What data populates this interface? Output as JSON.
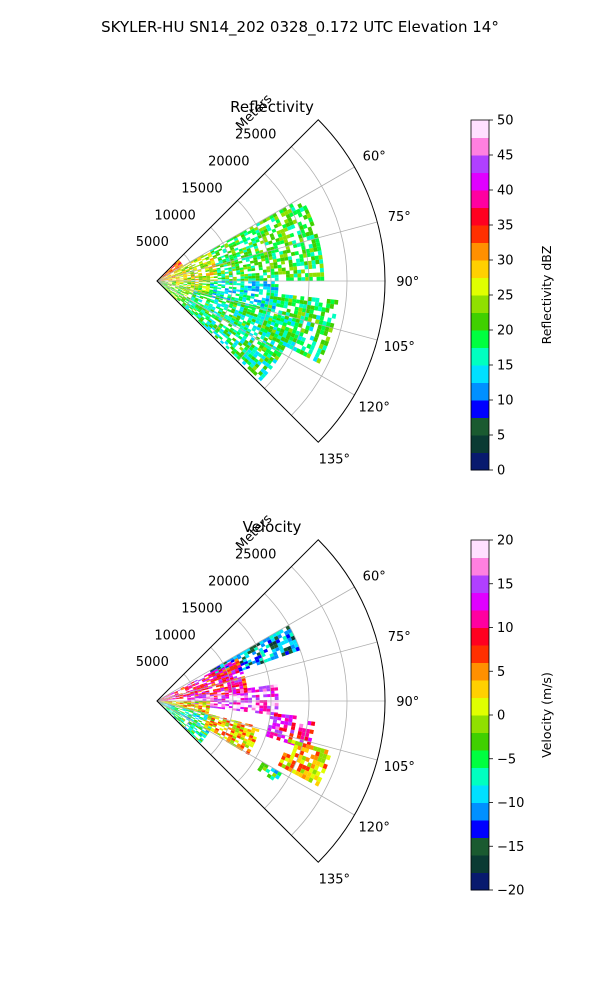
{
  "figure": {
    "suptitle": "SKYLER-HU  SN14_202  0328_0.172 UTC Elevation 14°"
  },
  "chart_data": [
    {
      "type": "polar-sector-heatmap",
      "title": "Reflectivity",
      "radial_label": "Meters",
      "radial_ticks": [
        5000,
        10000,
        15000,
        20000,
        25000
      ],
      "radial_tick_labels": [
        "5000",
        "10000",
        "15000",
        "20000",
        "25000"
      ],
      "rlim": [
        0,
        30000
      ],
      "angular_ticks_deg": [
        60,
        75,
        90,
        105,
        120,
        135
      ],
      "angular_tick_labels": [
        "60°",
        "75°",
        "90°",
        "105°",
        "120°",
        "135°"
      ],
      "theta_range_deg": [
        45,
        135
      ],
      "grid": true,
      "colorbar": {
        "label": "Reflectivity dBZ",
        "ticks": [
          0,
          5,
          10,
          15,
          20,
          25,
          30,
          35,
          40,
          45,
          50
        ],
        "tick_labels": [
          "0",
          "5",
          "10",
          "15",
          "20",
          "25",
          "30",
          "35",
          "40",
          "45",
          "50"
        ],
        "range": [
          0,
          50
        ],
        "colormap": [
          "#081a6e",
          "#0a3a33",
          "#1a5a30",
          "#0000ff",
          "#0090ff",
          "#00e0ff",
          "#00ffc0",
          "#00ff40",
          "#40d000",
          "#90e000",
          "#e0ff00",
          "#ffd000",
          "#ff9000",
          "#ff3000",
          "#ff0020",
          "#ff00a0",
          "#e000ff",
          "#b040ff",
          "#ff80e0",
          "#ffe0ff"
        ]
      },
      "echo_regions": [
        {
          "az": [
            46,
            60
          ],
          "r": [
            0,
            4000
          ],
          "value": 34
        },
        {
          "az": [
            50,
            90
          ],
          "r": [
            0,
            2500
          ],
          "value": 30
        },
        {
          "az": [
            60,
            90
          ],
          "r": [
            2500,
            8000
          ],
          "value": 26
        },
        {
          "az": [
            60,
            90
          ],
          "r": [
            8000,
            22000
          ],
          "value": 20
        },
        {
          "az": [
            90,
            106
          ],
          "r": [
            0,
            7000
          ],
          "value": 24
        },
        {
          "az": [
            90,
            106
          ],
          "r": [
            7000,
            16000
          ],
          "value": 15
        },
        {
          "az": [
            104,
            134
          ],
          "r": [
            0,
            5000
          ],
          "value": 22
        },
        {
          "az": [
            104,
            134
          ],
          "r": [
            5000,
            19000
          ],
          "value": 18
        },
        {
          "az": [
            96,
            116
          ],
          "r": [
            15000,
            24000
          ],
          "value": 19
        },
        {
          "az": [
            120,
            124
          ],
          "r": [
            16000,
            19000
          ],
          "value": 20
        }
      ]
    },
    {
      "type": "polar-sector-heatmap",
      "title": "Velocity",
      "radial_label": "Meters",
      "radial_ticks": [
        5000,
        10000,
        15000,
        20000,
        25000
      ],
      "radial_tick_labels": [
        "5000",
        "10000",
        "15000",
        "20000",
        "25000"
      ],
      "rlim": [
        0,
        30000
      ],
      "angular_ticks_deg": [
        60,
        75,
        90,
        105,
        120,
        135
      ],
      "angular_tick_labels": [
        "60°",
        "75°",
        "90°",
        "105°",
        "120°",
        "135°"
      ],
      "theta_range_deg": [
        45,
        135
      ],
      "grid": true,
      "colorbar": {
        "label": "Velocity (m/s)",
        "ticks": [
          -20,
          -15,
          -10,
          -5,
          0,
          5,
          10,
          15,
          20
        ],
        "tick_labels": [
          "−20",
          "−15",
          "−10",
          "−5",
          "0",
          "5",
          "10",
          "15",
          "20"
        ],
        "range": [
          -20,
          20
        ],
        "colormap": [
          "#081a6e",
          "#0a3a33",
          "#1a5a30",
          "#0000ff",
          "#0090ff",
          "#00e0ff",
          "#00ffc0",
          "#00ff40",
          "#40d000",
          "#90e000",
          "#e0ff00",
          "#ffd000",
          "#ff9000",
          "#ff3000",
          "#ff0020",
          "#ff00a0",
          "#e000ff",
          "#b040ff",
          "#ff80e0",
          "#ffe0ff"
        ]
      },
      "echo_regions": [
        {
          "az": [
            60,
            70
          ],
          "r": [
            8000,
            20000
          ],
          "value": -12
        },
        {
          "az": [
            62,
            86
          ],
          "r": [
            0,
            12000
          ],
          "value": 10
        },
        {
          "az": [
            82,
            96
          ],
          "r": [
            4000,
            16000
          ],
          "value": 15
        },
        {
          "az": [
            90,
            106
          ],
          "r": [
            0,
            7000
          ],
          "value": 2
        },
        {
          "az": [
            104,
            134
          ],
          "r": [
            0,
            8000
          ],
          "value": -6
        },
        {
          "az": [
            104,
            120
          ],
          "r": [
            7000,
            14000
          ],
          "value": 3
        },
        {
          "az": [
            96,
            108
          ],
          "r": [
            15000,
            21000
          ],
          "value": 12
        },
        {
          "az": [
            106,
            118
          ],
          "r": [
            18000,
            24000
          ],
          "value": 3
        },
        {
          "az": [
            120,
            124
          ],
          "r": [
            16000,
            19000
          ],
          "value": -6
        }
      ]
    }
  ]
}
